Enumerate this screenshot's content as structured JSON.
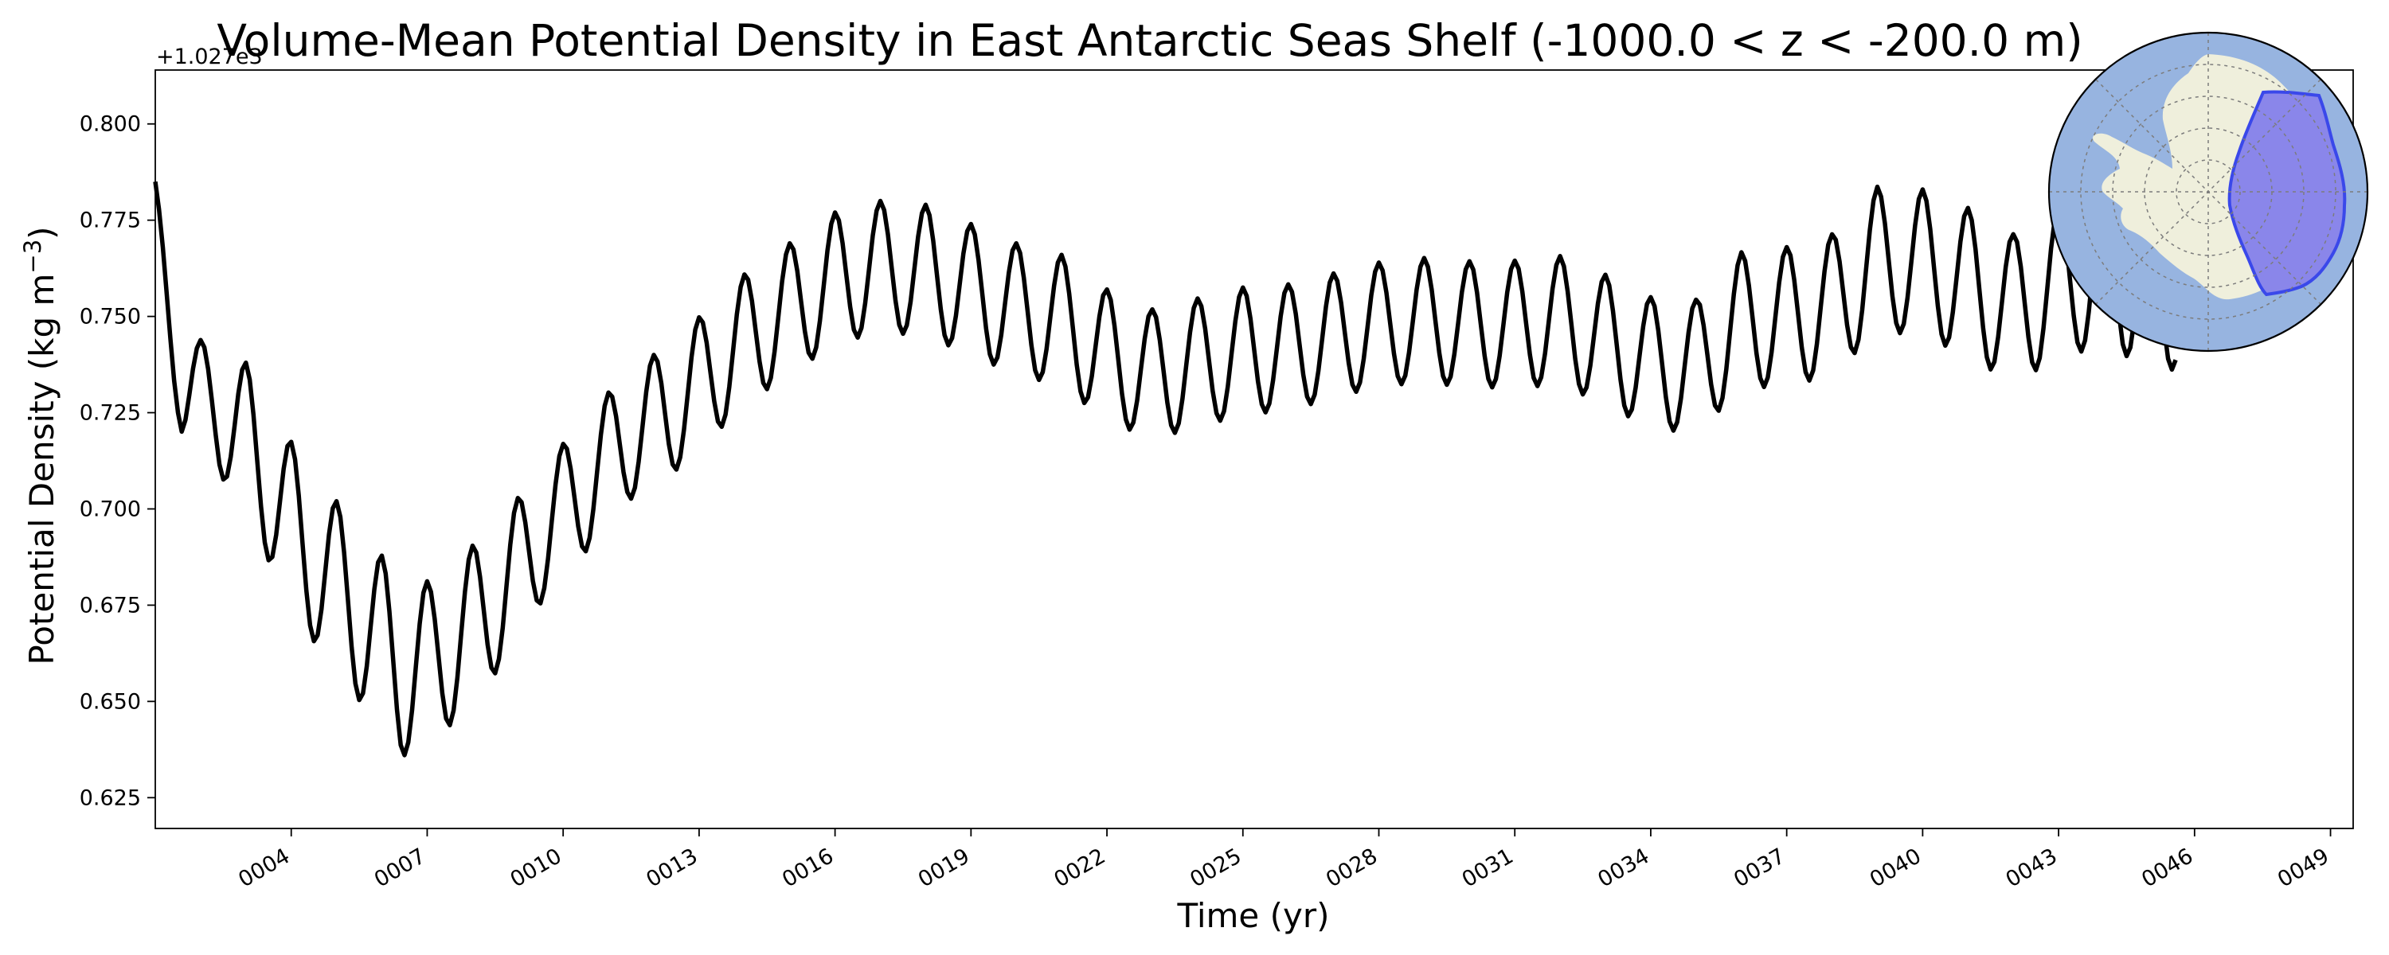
{
  "chart_data": {
    "type": "line",
    "title": "Volume-Mean Potential Density in East Antarctic Seas Shelf (-1000.0 < z < -200.0 m)",
    "xlabel": "Time (yr)",
    "ylabel_main": "Potential Density (kg m",
    "ylabel_exp": "−3",
    "ylabel_close": ")",
    "y_offset_label": "+1.027e3",
    "xlim": [
      1.0,
      49.5
    ],
    "ylim": [
      0.617,
      0.814
    ],
    "xticks": [
      4,
      7,
      10,
      13,
      16,
      19,
      22,
      25,
      28,
      31,
      34,
      37,
      40,
      43,
      46,
      49
    ],
    "xtick_labels": [
      "0004",
      "0007",
      "0010",
      "0013",
      "0016",
      "0019",
      "0022",
      "0025",
      "0028",
      "0031",
      "0034",
      "0037",
      "0040",
      "0043",
      "0046",
      "0049"
    ],
    "yticks": [
      0.625,
      0.65,
      0.675,
      0.7,
      0.725,
      0.75,
      0.775,
      0.8
    ],
    "ytick_labels": [
      "0.625",
      "0.650",
      "0.675",
      "0.700",
      "0.725",
      "0.750",
      "0.775",
      "0.800"
    ],
    "series": [
      {
        "name": "Potential Density",
        "color": "#000000",
        "baseline": {
          "x": [
            1.0,
            1.6,
            2.3,
            3.0,
            3.6,
            4.3,
            5.0,
            5.7,
            6.4,
            7.1,
            7.8,
            8.7,
            9.6,
            10.5,
            11.4,
            12.3,
            13.2,
            14.1,
            15.0,
            16.0,
            17.0,
            18.0,
            19.0,
            20.0,
            21.0,
            22.0,
            23.0,
            24.0,
            25.0,
            26.0,
            27.0,
            28.0,
            29.0,
            30.0,
            31.0,
            32.0,
            33.0,
            34.0,
            35.0,
            36.0,
            37.0,
            38.0,
            39.0,
            40.0,
            41.0,
            42.0,
            43.0,
            44.0,
            45.0,
            45.6
          ],
          "y": [
            0.775,
            0.73,
            0.728,
            0.718,
            0.705,
            0.69,
            0.68,
            0.67,
            0.658,
            0.66,
            0.668,
            0.679,
            0.695,
            0.706,
            0.719,
            0.725,
            0.735,
            0.745,
            0.752,
            0.76,
            0.763,
            0.762,
            0.757,
            0.752,
            0.749,
            0.74,
            0.735,
            0.738,
            0.741,
            0.742,
            0.745,
            0.748,
            0.749,
            0.748,
            0.748,
            0.749,
            0.744,
            0.738,
            0.737,
            0.749,
            0.75,
            0.753,
            0.765,
            0.764,
            0.759,
            0.752,
            0.759,
            0.762,
            0.757,
            0.756
          ]
        },
        "amplitude": {
          "x": [
            1.0,
            3.0,
            6.0,
            10.0,
            16.0,
            22.0,
            28.0,
            34.0,
            40.0,
            45.6
          ],
          "y": [
            0.01,
            0.02,
            0.023,
            0.017,
            0.017,
            0.017,
            0.016,
            0.017,
            0.019,
            0.02
          ]
        },
        "period_years": 1.0,
        "phase_peak_year": 1.0
      }
    ],
    "inset": {
      "type": "south-polar-map",
      "ocean_color": "#97b4e0",
      "land_color": "#efefdc",
      "region_color": "#8a86ea",
      "region_edge_color": "#3a48ea",
      "region_name": "East Antarctic Seas Shelf"
    }
  }
}
